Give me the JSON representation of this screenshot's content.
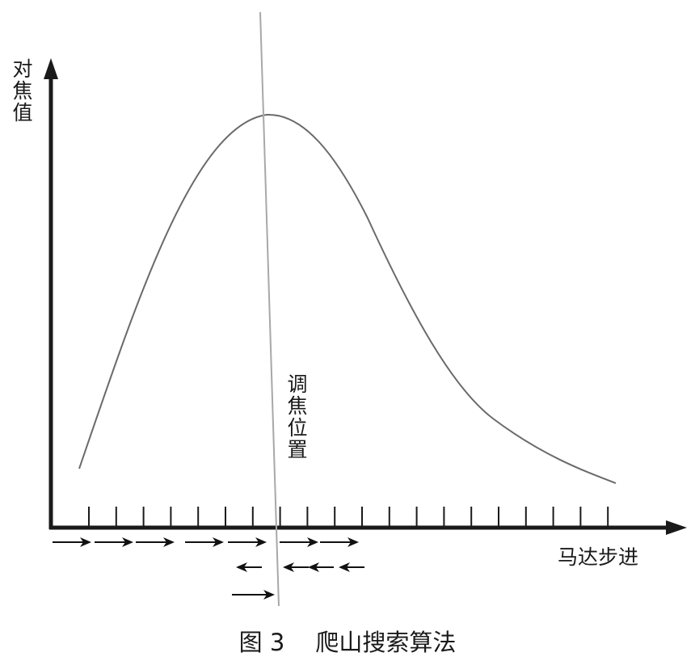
{
  "y_axis_label": "对焦值",
  "x_axis_label": "马达步进",
  "focus_label": "调焦位置",
  "figure_number": "图 3",
  "figure_title": "爬山搜索算法",
  "colors": {
    "axis": "#1a1a1a",
    "curve": "#6a6a6a",
    "focus_line": "#a8a8a8",
    "arrows": "#111111"
  },
  "step_arrows": {
    "forward_pass": {
      "direction": "right",
      "count": 7
    },
    "backward_pass": {
      "direction": "left",
      "count": 4
    },
    "final_pass": {
      "direction": "right",
      "count": 1
    }
  }
}
